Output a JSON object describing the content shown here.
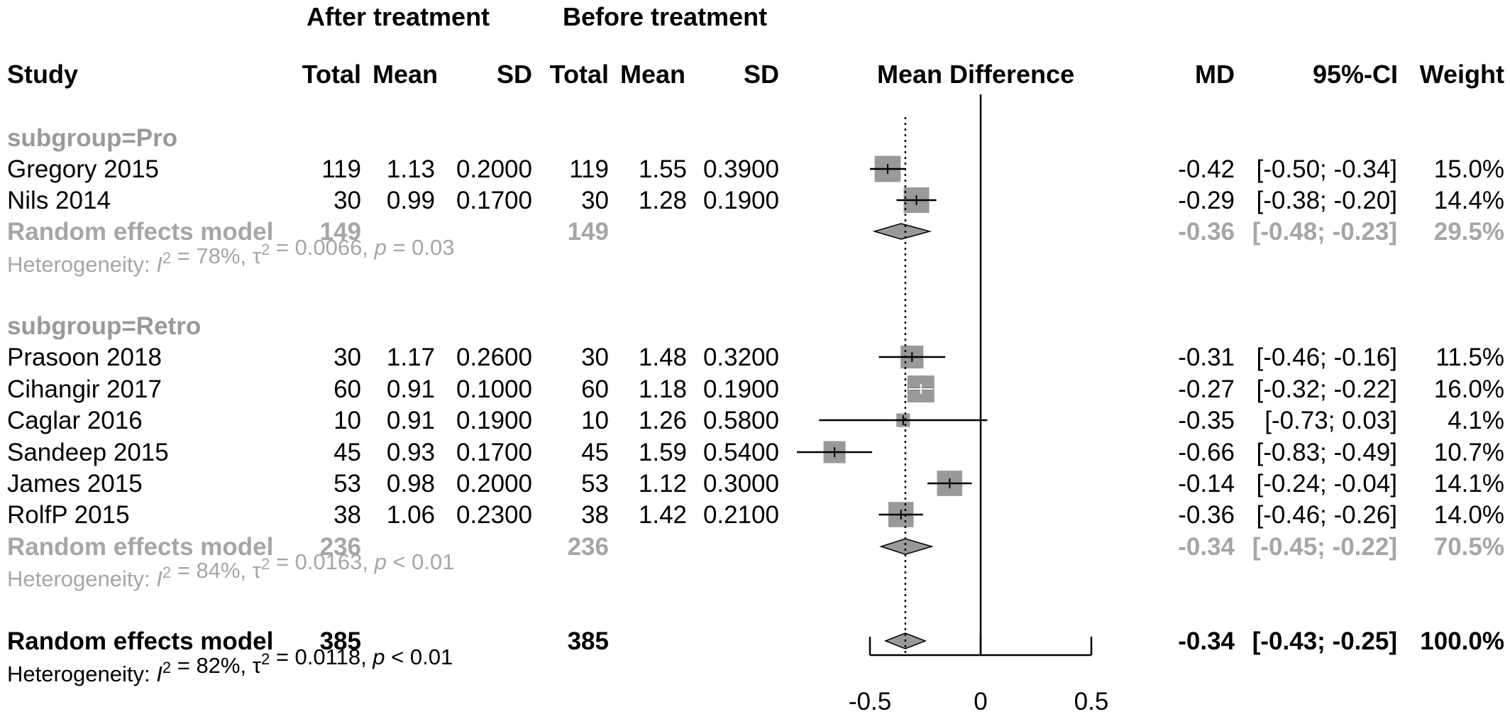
{
  "headers": {
    "group_after": "After treatment",
    "group_before": "Before treatment",
    "study": "Study",
    "total": "Total",
    "mean": "Mean",
    "sd": "SD",
    "mean_difference": "Mean Difference",
    "md": "MD",
    "ci": "95%-CI",
    "weight": "Weight"
  },
  "chart_data": {
    "type": "forest",
    "xlim": [
      -0.5,
      0.5
    ],
    "ticks": [
      {
        "value": -0.5,
        "label": "-0.5"
      },
      {
        "value": 0,
        "label": "0"
      },
      {
        "value": 0.5,
        "label": "0.5"
      }
    ],
    "pooled_estimate": -0.34,
    "colors": {
      "square": "#999999",
      "diamond": "#999999",
      "pooled_text": "#a6a6a6"
    },
    "subgroups": [
      {
        "label": "subgroup=Pro",
        "studies": [
          {
            "study": "Gregory 2015",
            "after_total": "119",
            "after_mean": "1.13",
            "after_sd": "0.2000",
            "before_total": "119",
            "before_mean": "1.55",
            "before_sd": "0.3900",
            "md": -0.42,
            "lower": -0.5,
            "upper": -0.34,
            "weight": 15.0,
            "md_text": "-0.42",
            "ci_text": "[-0.50; -0.34]",
            "weight_text": "15.0%"
          },
          {
            "study": "Nils 2014",
            "after_total": "30",
            "after_mean": "0.99",
            "after_sd": "0.1700",
            "before_total": "30",
            "before_mean": "1.28",
            "before_sd": "0.1900",
            "md": -0.29,
            "lower": -0.38,
            "upper": -0.2,
            "weight": 14.4,
            "md_text": "-0.29",
            "ci_text": "[-0.38; -0.20]",
            "weight_text": "14.4%"
          }
        ],
        "pooled": {
          "label": "Random effects model",
          "after_total": "149",
          "before_total": "149",
          "md": -0.36,
          "lower": -0.48,
          "upper": -0.23,
          "md_text": "-0.36",
          "ci_text": "[-0.48; -0.23]",
          "weight_text": "29.5%"
        },
        "heterogeneity": {
          "prefix": "Heterogeneity: ",
          "i2_symbol": "I",
          "i2_exp": "2",
          "i2_value": " = 78%, ",
          "tau_symbol": "τ",
          "tau_exp": "2",
          "tau_value": " = 0.0066, ",
          "p_symbol": "p",
          "p_value": " = 0.03"
        }
      },
      {
        "label": "subgroup=Retro",
        "studies": [
          {
            "study": "Prasoon 2018",
            "after_total": "30",
            "after_mean": "1.17",
            "after_sd": "0.2600",
            "before_total": "30",
            "before_mean": "1.48",
            "before_sd": "0.3200",
            "md": -0.31,
            "lower": -0.46,
            "upper": -0.16,
            "weight": 11.5,
            "md_text": "-0.31",
            "ci_text": "[-0.46; -0.16]",
            "weight_text": "11.5%"
          },
          {
            "study": "Cihangir 2017",
            "after_total": "60",
            "after_mean": "0.91",
            "after_sd": "0.1000",
            "before_total": "60",
            "before_mean": "1.18",
            "before_sd": "0.1900",
            "md": -0.27,
            "lower": -0.32,
            "upper": -0.22,
            "weight": 16.0,
            "md_text": "-0.27",
            "ci_text": "[-0.32; -0.22]",
            "weight_text": "16.0%"
          },
          {
            "study": "Caglar 2016",
            "after_total": "10",
            "after_mean": "0.91",
            "after_sd": "0.1900",
            "before_total": "10",
            "before_mean": "1.26",
            "before_sd": "0.5800",
            "md": -0.35,
            "lower": -0.73,
            "upper": 0.03,
            "weight": 4.1,
            "md_text": "-0.35",
            "ci_text": "[-0.73;  0.03]",
            "weight_text": "4.1%"
          },
          {
            "study": "Sandeep 2015",
            "after_total": "45",
            "after_mean": "0.93",
            "after_sd": "0.1700",
            "before_total": "45",
            "before_mean": "1.59",
            "before_sd": "0.5400",
            "md": -0.66,
            "lower": -0.83,
            "upper": -0.49,
            "weight": 10.7,
            "md_text": "-0.66",
            "ci_text": "[-0.83; -0.49]",
            "weight_text": "10.7%"
          },
          {
            "study": "James 2015",
            "after_total": "53",
            "after_mean": "0.98",
            "after_sd": "0.2000",
            "before_total": "53",
            "before_mean": "1.12",
            "before_sd": "0.3000",
            "md": -0.14,
            "lower": -0.24,
            "upper": -0.04,
            "weight": 14.1,
            "md_text": "-0.14",
            "ci_text": "[-0.24; -0.04]",
            "weight_text": "14.1%"
          },
          {
            "study": "RolfP 2015",
            "after_total": "38",
            "after_mean": "1.06",
            "after_sd": "0.2300",
            "before_total": "38",
            "before_mean": "1.42",
            "before_sd": "0.2100",
            "md": -0.36,
            "lower": -0.46,
            "upper": -0.26,
            "weight": 14.0,
            "md_text": "-0.36",
            "ci_text": "[-0.46; -0.26]",
            "weight_text": "14.0%"
          }
        ],
        "pooled": {
          "label": "Random effects model",
          "after_total": "236",
          "before_total": "236",
          "md": -0.34,
          "lower": -0.45,
          "upper": -0.22,
          "md_text": "-0.34",
          "ci_text": "[-0.45; -0.22]",
          "weight_text": "70.5%"
        },
        "heterogeneity": {
          "prefix": "Heterogeneity: ",
          "i2_symbol": "I",
          "i2_exp": "2",
          "i2_value": " = 84%, ",
          "tau_symbol": "τ",
          "tau_exp": "2",
          "tau_value": " = 0.0163, ",
          "p_symbol": "p",
          "p_value": " < 0.01"
        }
      }
    ],
    "overall": {
      "label": "Random effects model",
      "after_total": "385",
      "before_total": "385",
      "md": -0.34,
      "lower": -0.43,
      "upper": -0.25,
      "md_text": "-0.34",
      "ci_text": "[-0.43; -0.25]",
      "weight_text": "100.0%",
      "heterogeneity": {
        "prefix": "Heterogeneity: ",
        "i2_symbol": "I",
        "i2_exp": "2",
        "i2_value": " = 82%, ",
        "tau_symbol": "τ",
        "tau_exp": "2",
        "tau_value": " = 0.0118, ",
        "p_symbol": "p",
        "p_value": " < 0.01"
      }
    }
  }
}
